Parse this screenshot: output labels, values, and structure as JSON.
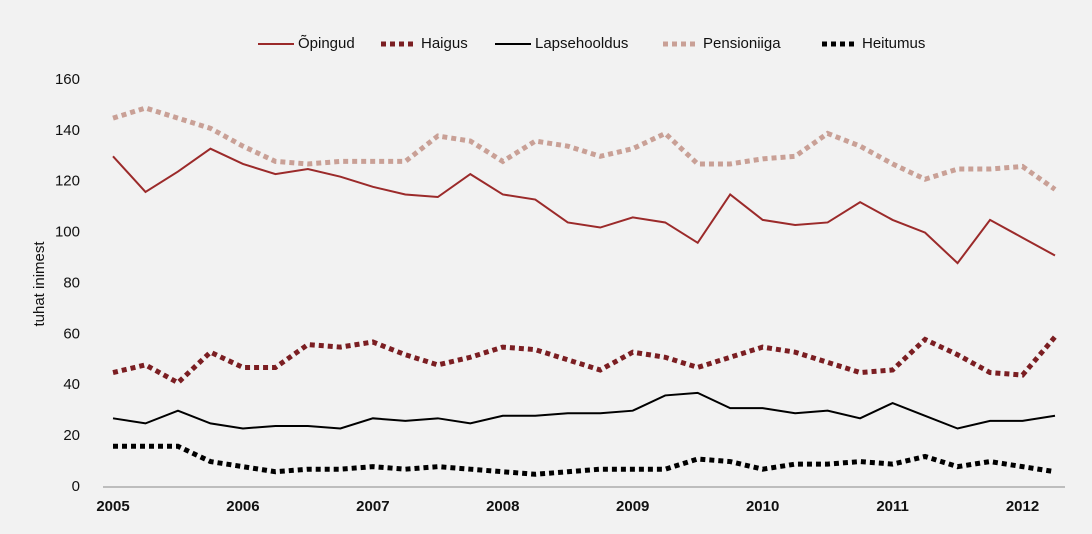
{
  "chart_data": {
    "type": "line",
    "ylabel": "tuhat inimest",
    "categories": [
      "2005",
      null,
      null,
      null,
      "2006",
      null,
      null,
      null,
      "2007",
      null,
      null,
      null,
      "2008",
      null,
      null,
      null,
      "2009",
      null,
      null,
      null,
      "2010",
      null,
      null,
      null,
      "2011",
      null,
      null,
      null,
      "2012",
      null
    ],
    "ylim": [
      0,
      160
    ],
    "yticks": [
      0,
      20,
      40,
      60,
      80,
      100,
      120,
      140,
      160
    ],
    "grid": false,
    "legend": "top",
    "series": [
      {
        "name": "Õpingud",
        "color": "#9b2a2a",
        "line_style": "solid",
        "values": [
          130,
          116,
          124,
          133,
          127,
          123,
          125,
          122,
          118,
          115,
          114,
          123,
          115,
          113,
          104,
          102,
          106,
          104,
          96,
          115,
          105,
          103,
          104,
          112,
          105,
          100,
          88,
          105,
          98,
          91
        ]
      },
      {
        "name": "Haigus",
        "color": "#7b1e22",
        "line_style": "dotted",
        "values": [
          45,
          48,
          41,
          53,
          47,
          47,
          56,
          55,
          57,
          52,
          48,
          51,
          55,
          54,
          50,
          46,
          53,
          51,
          47,
          51,
          55,
          53,
          49,
          45,
          46,
          58,
          52,
          45,
          44,
          59
        ]
      },
      {
        "name": "Lapsehooldus",
        "color": "#000000",
        "line_style": "solid",
        "values": [
          27,
          25,
          30,
          25,
          23,
          24,
          24,
          23,
          27,
          26,
          27,
          25,
          28,
          28,
          29,
          29,
          30,
          36,
          37,
          31,
          31,
          29,
          30,
          27,
          33,
          28,
          23,
          26,
          26,
          28
        ]
      },
      {
        "name": "Pensioniiga",
        "color": "#c9a096",
        "line_style": "dotted",
        "values": [
          145,
          149,
          145,
          141,
          134,
          128,
          127,
          128,
          128,
          128,
          138,
          136,
          128,
          136,
          134,
          130,
          133,
          139,
          127,
          127,
          129,
          130,
          139,
          134,
          127,
          121,
          125,
          125,
          126,
          117
        ]
      },
      {
        "name": "Heitumus",
        "color": "#000000",
        "line_style": "dotted",
        "values": [
          16,
          16,
          16,
          10,
          8,
          6,
          7,
          7,
          8,
          7,
          8,
          7,
          6,
          5,
          6,
          7,
          7,
          7,
          11,
          10,
          7,
          9,
          9,
          10,
          9,
          12,
          8,
          10,
          8,
          6
        ]
      }
    ]
  }
}
